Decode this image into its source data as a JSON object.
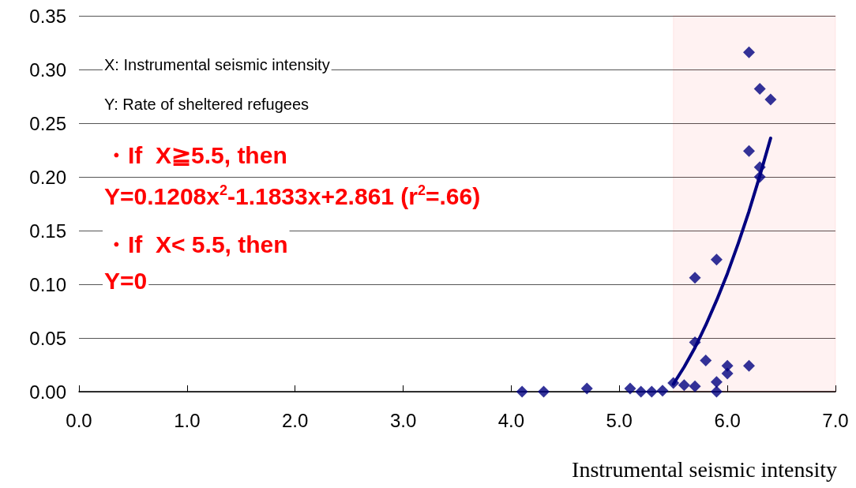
{
  "chart_data": {
    "type": "scatter",
    "xlabel": "Instrumental seismic intensity",
    "annotations": [
      "X: Instrumental seismic intensity",
      "Y: Rate of sheltered refugees",
      "・If  X≧5.5, then",
      "Y=0.1208x$^{2}$-1.1833x+2.861 (r$^{2}$=.66)",
      "・If  X< 5.5, then",
      "Y=0"
    ],
    "series": [
      {
        "color": "#000080",
        "marker": "diamond",
        "x": [
          4.1,
          4.3,
          4.7,
          5.1,
          5.2,
          5.3,
          5.4,
          5.5,
          5.6,
          5.7,
          5.7,
          5.7,
          5.8,
          5.9,
          5.9,
          5.9,
          6.0,
          6.0,
          6.2,
          6.2,
          6.2,
          6.3,
          6.3,
          6.3,
          6.4
        ],
        "values": [
          0.0,
          0.0,
          0.003,
          0.003,
          0.0,
          0.0,
          0.001,
          0.008,
          0.006,
          0.005,
          0.046,
          0.106,
          0.029,
          0.009,
          0.0,
          0.123,
          0.017,
          0.024,
          0.024,
          0.224,
          0.316,
          0.209,
          0.2,
          0.282,
          0.272
        ]
      },
      {
        "type": "line",
        "color": "#000080",
        "marker": "none",
        "line_style": "solid",
        "x": [
          5.5,
          5.6,
          5.7,
          5.8,
          5.9,
          6.0,
          6.1,
          6.2,
          6.3,
          6.4
        ],
        "values": [
          0.007,
          0.023,
          0.041,
          0.062,
          0.085,
          0.11,
          0.138,
          0.168,
          0.201,
          0.236
        ]
      }
    ],
    "bands": [
      {
        "axis": "x",
        "from": 5.5,
        "to": 7.0,
        "color": "#ff0000"
      }
    ],
    "xlim": [
      0,
      7
    ],
    "xticks": [
      {
        "value": 0,
        "label": "0.0"
      },
      {
        "value": 1,
        "label": "1.0"
      },
      {
        "value": 2,
        "label": "2.0"
      },
      {
        "value": 3,
        "label": "3.0"
      },
      {
        "value": 4,
        "label": "4.0"
      },
      {
        "value": 5,
        "label": "5.0"
      },
      {
        "value": 6,
        "label": "6.0"
      },
      {
        "value": 7,
        "label": "7.0"
      }
    ],
    "ylim": [
      0,
      0.35
    ],
    "yticks": [
      {
        "value": 0,
        "label": "0.00"
      },
      {
        "value": 0.05,
        "label": "0.05"
      },
      {
        "value": 0.1,
        "label": "0.10"
      },
      {
        "value": 0.15,
        "label": "0.15"
      },
      {
        "value": 0.2,
        "label": "0.20"
      },
      {
        "value": 0.25,
        "label": "0.25"
      },
      {
        "value": 0.3,
        "label": "0.30"
      },
      {
        "value": 0.35,
        "label": "0.35"
      }
    ],
    "grid": "y"
  }
}
